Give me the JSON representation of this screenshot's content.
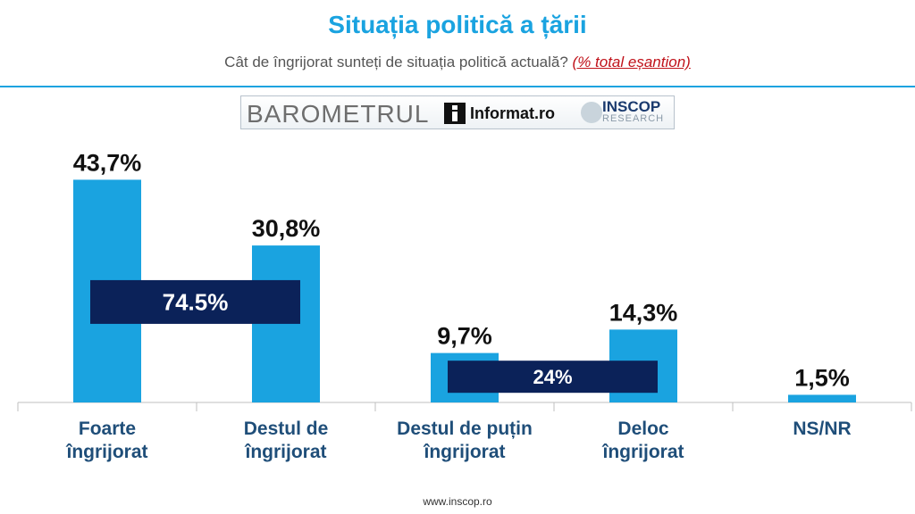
{
  "header": {
    "title": "Situația politică a țării",
    "subtitle": "Cât de îngrijorat sunteți de situația politică actuală?",
    "sample_note": "(% total eșantion)"
  },
  "logos": {
    "barometer": "BAROMETRUL",
    "informat": "Informat.ro",
    "inscop": "INSCOP",
    "research": "RESEARCH"
  },
  "chart_data": {
    "type": "bar",
    "categories": [
      [
        "Foarte",
        "îngrijorat"
      ],
      [
        "Destul de",
        "îngrijorat"
      ],
      [
        "Destul de puțin",
        "îngrijorat"
      ],
      [
        "Deloc",
        "îngrijorat"
      ],
      [
        "NS/NR"
      ]
    ],
    "values": [
      43.7,
      30.8,
      9.7,
      14.3,
      1.5
    ],
    "value_labels": [
      "43,7%",
      "30,8%",
      "9,7%",
      "14,3%",
      "1,5%"
    ],
    "ylim": [
      0,
      45
    ],
    "grid": false,
    "bar_color": "#1aa3e0",
    "group_totals": [
      {
        "label": "74.5%",
        "value": 74.5,
        "from": 0,
        "to": 1
      },
      {
        "label": "24%",
        "value": 24,
        "from": 2,
        "to": 3
      }
    ],
    "total_box_color": "#0b2259"
  },
  "footer": "www.inscop.ro"
}
